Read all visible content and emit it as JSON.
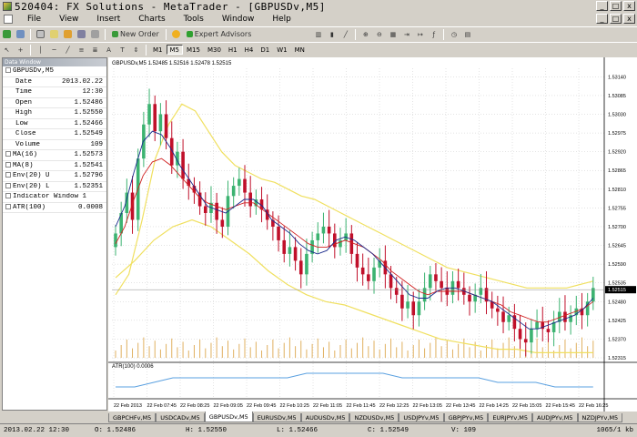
{
  "window": {
    "title": "520404: FX Solutions - MetaTrader - [GBPUSDv,M5]",
    "buttons": [
      "_",
      "□",
      "x"
    ]
  },
  "menu": [
    "File",
    "View",
    "Insert",
    "Charts",
    "Tools",
    "Window",
    "Help"
  ],
  "toolbar": {
    "new_order": "New Order",
    "expert_advisors": "Expert Advisors",
    "timeframes": [
      "M1",
      "M5",
      "M15",
      "M30",
      "H1",
      "H4",
      "D1",
      "W1",
      "MN"
    ],
    "active_timeframe": "M5"
  },
  "data_window": {
    "title": "Data Window",
    "symbol": "GBPUSDv,M5",
    "rows": [
      {
        "label": "Date",
        "value": "2013.02.22"
      },
      {
        "label": "Time",
        "value": "12:30"
      },
      {
        "label": "Open",
        "value": "1.52486"
      },
      {
        "label": "High",
        "value": "1.52550"
      },
      {
        "label": "Low",
        "value": "1.52466"
      },
      {
        "label": "Close",
        "value": "1.52549"
      },
      {
        "label": "Volume",
        "value": "109"
      }
    ],
    "indicators": [
      {
        "label": "MA(16)",
        "value": "1.52573"
      },
      {
        "label": "MA(8)",
        "value": "1.52541"
      },
      {
        "label": "Env(20) U",
        "value": "1.52796"
      },
      {
        "label": "Env(20) L",
        "value": "1.52351"
      }
    ],
    "subwindow": {
      "label": "Indicator Window 1"
    },
    "sub_indicators": [
      {
        "label": "ATR(100)",
        "value": "0.0008"
      }
    ]
  },
  "chart": {
    "header": "GBPUSDv,M5  1.52485 1.52516 1.52478 1.52515",
    "sub_header": "ATR(100) 0.0006",
    "current_price": "1.52515"
  },
  "chart_data": {
    "type": "candlestick",
    "symbol": "GBPUSDv",
    "timeframe": "M5",
    "y_ticks": [
      "1.53140",
      "1.53085",
      "1.53030",
      "1.52975",
      "1.52920",
      "1.52865",
      "1.52810",
      "1.52755",
      "1.52700",
      "1.52645",
      "1.52590",
      "1.52535",
      "1.52480",
      "1.52425",
      "1.52370",
      "1.52315"
    ],
    "ylim": [
      1.52315,
      1.53165
    ],
    "x_ticks": [
      "22 Feb 2013",
      "22 Feb 07:45",
      "22 Feb 08:25",
      "22 Feb 09:05",
      "22 Feb 09:45",
      "22 Feb 10:25",
      "22 Feb 11:05",
      "22 Feb 11:45",
      "22 Feb 12:25",
      "22 Feb 13:05",
      "22 Feb 13:45",
      "22 Feb 14:25",
      "22 Feb 15:05",
      "22 Feb 15:45",
      "22 Feb 16:25"
    ],
    "close": [
      1.5268,
      1.5274,
      1.528,
      1.5272,
      1.529,
      1.53,
      1.5306,
      1.5298,
      1.5303,
      1.5296,
      1.5288,
      1.5292,
      1.5284,
      1.5282,
      1.528,
      1.5276,
      1.5274,
      1.5277,
      1.5272,
      1.527,
      1.5279,
      1.5282,
      1.5284,
      1.528,
      1.5276,
      1.5278,
      1.5275,
      1.5272,
      1.527,
      1.5266,
      1.5262,
      1.5264,
      1.526,
      1.5256,
      1.5262,
      1.5266,
      1.5268,
      1.527,
      1.5268,
      1.5264,
      1.5266,
      1.5268,
      1.5262,
      1.5258,
      1.5256,
      1.5254,
      1.5258,
      1.526,
      1.5256,
      1.5252,
      1.525,
      1.5246,
      1.5248,
      1.5244,
      1.5248,
      1.5252,
      1.5256,
      1.5254,
      1.5252,
      1.525,
      1.5254,
      1.5252,
      1.525,
      1.5248,
      1.525,
      1.5252,
      1.5248,
      1.5246,
      1.5245,
      1.5242,
      1.5244,
      1.524,
      1.5237,
      1.5236,
      1.524,
      1.5242,
      1.524,
      1.5239,
      1.5242,
      1.5245,
      1.5242,
      1.5244,
      1.5246,
      1.5244,
      1.5248,
      1.5252
    ],
    "ma_fast": [
      1.527,
      1.5276,
      1.5286,
      1.5295,
      1.5298,
      1.5297,
      1.5293,
      1.5288,
      1.5284,
      1.528,
      1.5276,
      1.5275,
      1.5274,
      1.5276,
      1.5278,
      1.5278,
      1.5276,
      1.5272,
      1.527,
      1.5268,
      1.5265,
      1.5263,
      1.5262,
      1.5263,
      1.5266,
      1.5267,
      1.5266,
      1.5264,
      1.5262,
      1.5259,
      1.5256,
      1.5253,
      1.525,
      1.5249,
      1.5249,
      1.5251,
      1.5252,
      1.5252,
      1.5251,
      1.525,
      1.5249,
      1.5248,
      1.5246,
      1.5244,
      1.5242,
      1.524,
      1.524,
      1.5241,
      1.5242,
      1.5243,
      1.5244,
      1.5246,
      1.5249
    ],
    "ma_slow": [
      1.5265,
      1.527,
      1.5278,
      1.5285,
      1.5289,
      1.529,
      1.5288,
      1.5285,
      1.5282,
      1.5279,
      1.5277,
      1.5276,
      1.5275,
      1.5276,
      1.5277,
      1.5277,
      1.5275,
      1.5273,
      1.5271,
      1.5269,
      1.5267,
      1.5265,
      1.5264,
      1.5264,
      1.5265,
      1.5266,
      1.5265,
      1.5264,
      1.5262,
      1.526,
      1.5257,
      1.5255,
      1.5253,
      1.5251,
      1.525,
      1.5251,
      1.5251,
      1.5251,
      1.5251,
      1.525,
      1.5249,
      1.5248,
      1.5247,
      1.5245,
      1.5244,
      1.5243,
      1.5242,
      1.5242,
      1.5243,
      1.5244,
      1.5245,
      1.5246,
      1.5248
    ],
    "env_upper": [
      1.525,
      1.5256,
      1.5272,
      1.529,
      1.53,
      1.5306,
      1.5304,
      1.5298,
      1.5292,
      1.5288,
      1.5286,
      1.5284,
      1.5283,
      1.5281,
      1.5279,
      1.5278,
      1.5276,
      1.5274,
      1.5272,
      1.527,
      1.5268,
      1.5266,
      1.5264,
      1.5262,
      1.526,
      1.5258,
      1.5257,
      1.5256,
      1.5255,
      1.5254,
      1.5253,
      1.5252,
      1.5252,
      1.5252,
      1.5252,
      1.5253,
      1.5254
    ],
    "env_lower": [
      1.5255,
      1.526,
      1.5266,
      1.527,
      1.5272,
      1.527,
      1.5266,
      1.5262,
      1.5257,
      1.5253,
      1.525,
      1.5248,
      1.5247,
      1.5245,
      1.5243,
      1.5241,
      1.5239,
      1.5237,
      1.5236,
      1.5235,
      1.5234,
      1.5234,
      1.5233,
      1.5233,
      1.5233,
      1.5233
    ],
    "atr": [
      0.0006,
      0.0006,
      0.0007,
      0.0008,
      0.0008,
      0.0008,
      0.0008,
      0.0008,
      0.0008,
      0.0008,
      0.0009,
      0.0009,
      0.0009,
      0.0009,
      0.0009,
      0.0008,
      0.0008,
      0.0008,
      0.0008,
      0.0008,
      0.0007,
      0.0007,
      0.0007,
      0.0006,
      0.0006,
      0.0006
    ],
    "grid": true
  },
  "tabs": [
    "GBPCHFv,M5",
    "USDCADv,M5",
    "GBPUSDv,M5",
    "EURUSDv,M5",
    "AUDUSDv,M5",
    "NZDUSDv,M5",
    "USDJPYv,M5",
    "GBPJPYv,M5",
    "EURJPYv,M5",
    "AUDJPYv,M5",
    "NZDJPYv,M5"
  ],
  "active_tab": "GBPUSDv,M5",
  "status": {
    "datetime": "2013.02.22 12:30",
    "open": "O: 1.52486",
    "high": "H: 1.52550",
    "low": "L: 1.52466",
    "close": "C: 1.52549",
    "volume": "V: 109",
    "traffic": "1065/1 kb"
  },
  "colors": {
    "bull": "#3cb371",
    "bear": "#c0102a",
    "ma_fast": "#1a2a8c",
    "ma_slow": "#d02020",
    "envelope": "#f0e060",
    "atr": "#5aa0e0",
    "volume": "#e0b060",
    "grid": "#c8c8c8"
  }
}
